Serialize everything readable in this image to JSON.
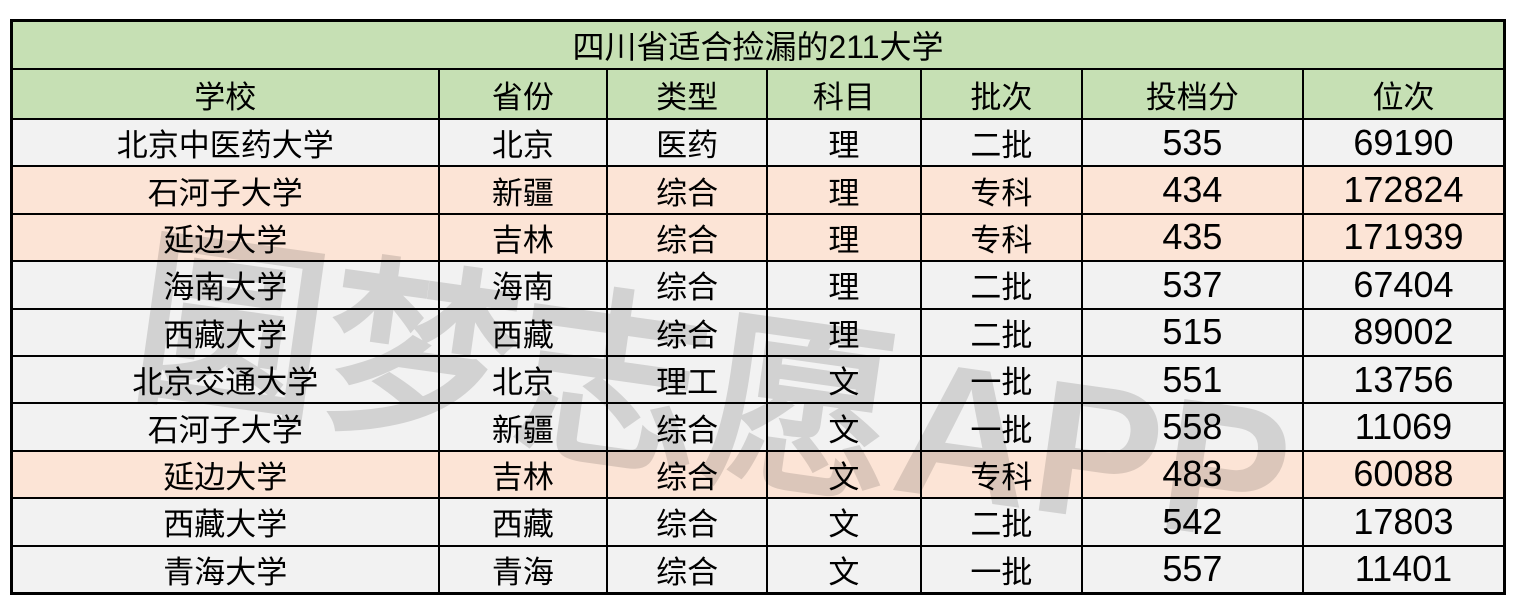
{
  "colors": {
    "page_bg": "#ffffff",
    "header_green": "#c6e0b4",
    "row_gray": "#f2f2f2",
    "row_highlight_orange": "#fce4d6",
    "border": "#000000",
    "text": "#000000"
  },
  "watermark": {
    "text": "圆梦志愿APP"
  },
  "chart_data": {
    "type": "table",
    "title": "四川省适合捡漏的211大学",
    "columns": [
      "学校",
      "省份",
      "类型",
      "科目",
      "批次",
      "投档分",
      "位次"
    ],
    "rows": [
      [
        "北京中医药大学",
        "北京",
        "医药",
        "理",
        "二批",
        535,
        69190
      ],
      [
        "石河子大学",
        "新疆",
        "综合",
        "理",
        "专科",
        434,
        172824
      ],
      [
        "延边大学",
        "吉林",
        "综合",
        "理",
        "专科",
        435,
        171939
      ],
      [
        "海南大学",
        "海南",
        "综合",
        "理",
        "二批",
        537,
        67404
      ],
      [
        "西藏大学",
        "西藏",
        "综合",
        "理",
        "二批",
        515,
        89002
      ],
      [
        "北京交通大学",
        "北京",
        "理工",
        "文",
        "一批",
        551,
        13756
      ],
      [
        "石河子大学",
        "新疆",
        "综合",
        "文",
        "一批",
        558,
        11069
      ],
      [
        "延边大学",
        "吉林",
        "综合",
        "文",
        "专科",
        483,
        60088
      ],
      [
        "西藏大学",
        "西藏",
        "综合",
        "文",
        "二批",
        542,
        17803
      ],
      [
        "青海大学",
        "青海",
        "综合",
        "文",
        "一批",
        557,
        11401
      ]
    ],
    "highlighted_row_indices": [
      1,
      2,
      7
    ],
    "column_width_percents": [
      28.6,
      11.3,
      10.7,
      10.3,
      10.8,
      14.8,
      13.5
    ],
    "numeric_column_indices": [
      5,
      6
    ]
  }
}
